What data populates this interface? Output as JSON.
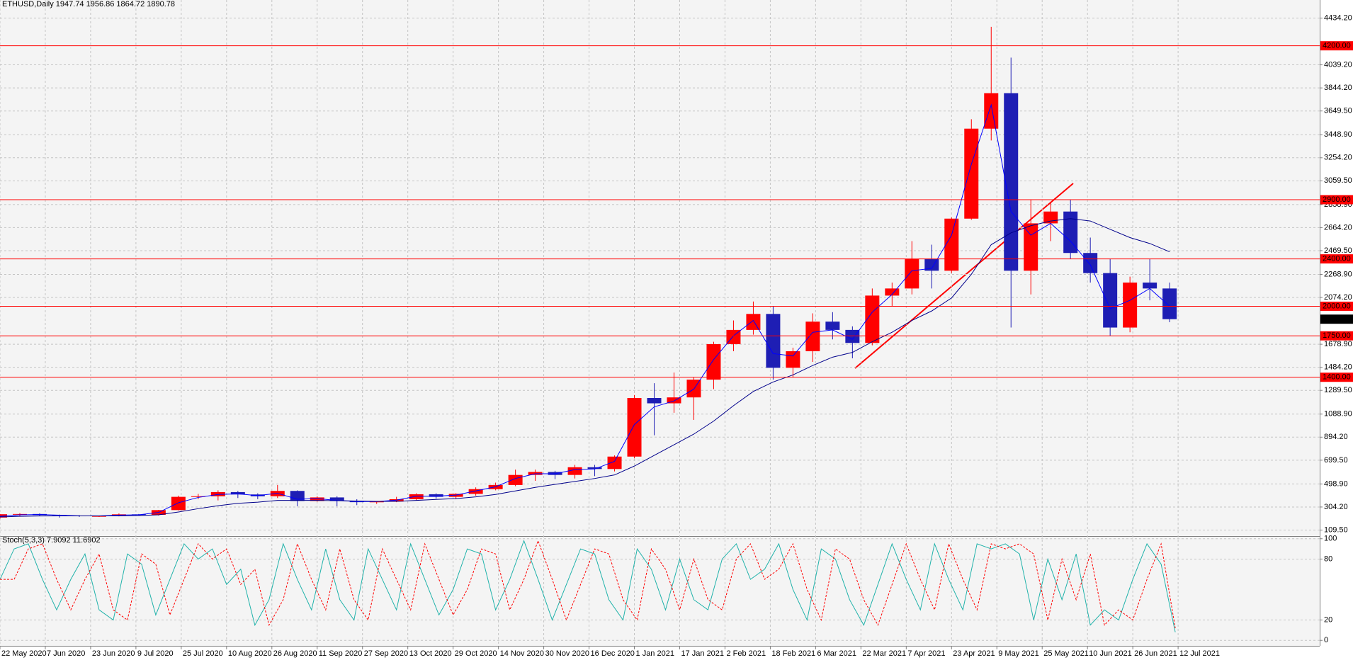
{
  "chart_data": [
    {
      "type": "candlestick",
      "title": "ETHUSD,Daily  1947.74 1956.86 1864.72 1890.78",
      "x": [
        "22 May 2020",
        "29 May 2020",
        "5 Jun 2020",
        "12 Jun 2020",
        "19 Jun 2020",
        "26 Jun 2020",
        "3 Jul 2020",
        "10 Jul 2020",
        "17 Jul 2020",
        "24 Jul 2020",
        "31 Jul 2020",
        "7 Aug 2020",
        "14 Aug 2020",
        "21 Aug 2020",
        "28 Aug 2020",
        "4 Sep 2020",
        "11 Sep 2020",
        "18 Sep 2020",
        "25 Sep 2020",
        "2 Oct 2020",
        "9 Oct 2020",
        "16 Oct 2020",
        "23 Oct 2020",
        "30 Oct 2020",
        "6 Nov 2020",
        "13 Nov 2020",
        "20 Nov 2020",
        "27 Nov 2020",
        "4 Dec 2020",
        "11 Dec 2020",
        "18 Dec 2020",
        "25 Dec 2020",
        "1 Jan 2021",
        "8 Jan 2021",
        "15 Jan 2021",
        "22 Jan 2021",
        "29 Jan 2021",
        "5 Feb 2021",
        "12 Feb 2021",
        "19 Feb 2021",
        "26 Feb 2021",
        "5 Mar 2021",
        "12 Mar 2021",
        "19 Mar 2021",
        "26 Mar 2021",
        "2 Apr 2021",
        "9 Apr 2021",
        "16 Apr 2021",
        "23 Apr 2021",
        "30 Apr 2021",
        "7 May 2021",
        "14 May 2021",
        "21 May 2021",
        "28 May 2021",
        "4 Jun 2021",
        "11 Jun 2021",
        "18 Jun 2021",
        "25 Jun 2021",
        "2 Jul 2021",
        "9 Jul 2021"
      ],
      "open": [
        215,
        243,
        245,
        236,
        232,
        228,
        228,
        242,
        238,
        278,
        390,
        395,
        430,
        410,
        395,
        440,
        355,
        385,
        355,
        345,
        350,
        370,
        412,
        390,
        415,
        455,
        490,
        575,
        600,
        575,
        640,
        625,
        730,
        1225,
        1180,
        1230,
        1380,
        1680,
        1800,
        1935,
        1480,
        1620,
        1870,
        1800,
        1690,
        2090,
        2150,
        2400,
        2300,
        2740,
        3500,
        3800,
        2300,
        2700,
        2800,
        2450,
        2280,
        1820,
        2200,
        2150
      ],
      "high": [
        245,
        252,
        250,
        240,
        236,
        232,
        250,
        245,
        280,
        400,
        415,
        445,
        440,
        420,
        490,
        445,
        395,
        395,
        370,
        355,
        390,
        420,
        420,
        420,
        470,
        510,
        620,
        620,
        610,
        660,
        660,
        740,
        1250,
        1350,
        1440,
        1400,
        1700,
        1880,
        2040,
        2000,
        1650,
        1940,
        1950,
        1830,
        2150,
        2200,
        2550,
        2520,
        2750,
        3580,
        4360,
        4100,
        2900,
        2880,
        2900,
        2580,
        2400,
        2250,
        2400,
        2200
      ],
      "low": [
        205,
        225,
        228,
        215,
        220,
        220,
        225,
        232,
        232,
        275,
        370,
        360,
        380,
        370,
        380,
        310,
        350,
        310,
        320,
        330,
        345,
        360,
        375,
        370,
        400,
        445,
        480,
        525,
        540,
        545,
        565,
        605,
        715,
        910,
        1100,
        1040,
        1300,
        1620,
        1760,
        1380,
        1400,
        1530,
        1720,
        1560,
        1670,
        2000,
        2100,
        2150,
        2280,
        2730,
        3400,
        1820,
        2100,
        2550,
        2400,
        2200,
        1750,
        1780,
        2050,
        1865
      ],
      "close": [
        243,
        245,
        236,
        232,
        228,
        228,
        242,
        238,
        278,
        390,
        395,
        430,
        410,
        395,
        440,
        355,
        385,
        355,
        345,
        350,
        370,
        412,
        390,
        415,
        455,
        490,
        575,
        600,
        575,
        640,
        625,
        730,
        1225,
        1180,
        1230,
        1380,
        1680,
        1800,
        1935,
        1480,
        1620,
        1870,
        1800,
        1690,
        2090,
        2150,
        2400,
        2300,
        2740,
        3500,
        3800,
        2300,
        2700,
        2800,
        2450,
        2280,
        1820,
        2200,
        2150,
        1890.78
      ],
      "up_color": "#ff0000",
      "down_color": "#1e1eb4",
      "indicators": [
        {
          "color": "#0000ff",
          "values": [
            225,
            238,
            240,
            235,
            230,
            229,
            236,
            238,
            258,
            340,
            385,
            410,
            415,
            400,
            420,
            370,
            375,
            360,
            350,
            350,
            362,
            395,
            395,
            405,
            440,
            475,
            545,
            585,
            585,
            620,
            625,
            690,
            1000,
            1150,
            1200,
            1300,
            1550,
            1750,
            1880,
            1600,
            1580,
            1780,
            1800,
            1720,
            1950,
            2100,
            2300,
            2320,
            2600,
            3200,
            3700,
            2800,
            2600,
            2700,
            2550,
            2350,
            1980,
            2050,
            2150,
            2000
          ]
        },
        {
          "color": "#00008b",
          "values": [
            220,
            225,
            228,
            229,
            229,
            229,
            230,
            232,
            238,
            262,
            290,
            315,
            335,
            345,
            360,
            360,
            360,
            358,
            355,
            352,
            352,
            360,
            368,
            375,
            390,
            410,
            440,
            470,
            495,
            520,
            545,
            575,
            650,
            740,
            830,
            920,
            1030,
            1160,
            1280,
            1360,
            1420,
            1500,
            1570,
            1610,
            1700,
            1780,
            1880,
            1960,
            2070,
            2270,
            2520,
            2620,
            2680,
            2720,
            2740,
            2720,
            2650,
            2580,
            2530,
            2460
          ]
        }
      ],
      "levels": [
        {
          "value": 4200,
          "label": "4200.00"
        },
        {
          "value": 2900,
          "label": "2900.00"
        },
        {
          "value": 2400,
          "label": "2400.00"
        },
        {
          "value": 2000,
          "label": "2000.00"
        },
        {
          "value": 1750,
          "label": "1750.00"
        },
        {
          "value": 1400,
          "label": "1400.00"
        }
      ],
      "level_color": "#ff0000",
      "last_price": 1890.78,
      "ylim": [
        58.6,
        4527
      ],
      "yticks": [
        {
          "value": 4434.2,
          "label": "4434.20"
        },
        {
          "value": 4039.2,
          "label": "4039.20"
        },
        {
          "value": 3844.2,
          "label": "3844.20"
        },
        {
          "value": 3649.5,
          "label": "3649.50"
        },
        {
          "value": 3448.9,
          "label": "3448.90"
        },
        {
          "value": 3254.2,
          "label": "3254.20"
        },
        {
          "value": 3059.5,
          "label": "3059.50"
        },
        {
          "value": 2858.9,
          "label": "2858.90"
        },
        {
          "value": 2664.2,
          "label": "2664.20"
        },
        {
          "value": 2469.5,
          "label": "2469.50"
        },
        {
          "value": 2268.9,
          "label": "2268.90"
        },
        {
          "value": 2074.2,
          "label": "2074.20"
        },
        {
          "value": 1678.9,
          "label": "1678.90"
        },
        {
          "value": 1484.2,
          "label": "1484.20"
        },
        {
          "value": 1289.5,
          "label": "1289.50"
        },
        {
          "value": 1088.9,
          "label": "1088.90"
        },
        {
          "value": 894.2,
          "label": "894.20"
        },
        {
          "value": 699.5,
          "label": "699.50"
        },
        {
          "value": 498.9,
          "label": "498.90"
        },
        {
          "value": 304.2,
          "label": "304.20"
        },
        {
          "value": 109.5,
          "label": "109.50"
        }
      ],
      "xlim": [
        "22 May 2020",
        "31 Aug 2021"
      ],
      "xticks": [
        "22 May 2020",
        "7 Jun 2020",
        "23 Jun 2020",
        "9 Jul 2020",
        "25 Jul 2020",
        "10 Aug 2020",
        "26 Aug 2020",
        "11 Sep 2020",
        "27 Sep 2020",
        "13 Oct 2020",
        "29 Oct 2020",
        "14 Nov 2020",
        "30 Nov 2020",
        "16 Dec 2020",
        "1 Jan 2021",
        "17 Jan 2021",
        "2 Feb 2021",
        "18 Feb 2021",
        "6 Mar 2021",
        "22 Mar 2021",
        "7 Apr 2021",
        "23 Apr 2021",
        "9 May 2021",
        "25 May 2021",
        "10 Jun 2021",
        "26 Jun 2021",
        "12 Jul 2021"
      ],
      "grid": true
    },
    {
      "type": "line",
      "title": "Stoch(5,3,3) 7.9092 11.6902",
      "x": [
        "22 May 2020",
        "27 May 2020",
        "1 Jun 2020",
        "6 Jun 2020",
        "11 Jun 2020",
        "16 Jun 2020",
        "21 Jun 2020",
        "26 Jun 2020",
        "1 Jul 2020",
        "6 Jul 2020",
        "11 Jul 2020",
        "16 Jul 2020",
        "21 Jul 2020",
        "26 Jul 2020",
        "31 Jul 2020",
        "5 Aug 2020",
        "10 Aug 2020",
        "15 Aug 2020",
        "20 Aug 2020",
        "25 Aug 2020",
        "30 Aug 2020",
        "4 Sep 2020",
        "9 Sep 2020",
        "14 Sep 2020",
        "19 Sep 2020",
        "24 Sep 2020",
        "29 Sep 2020",
        "4 Oct 2020",
        "9 Oct 2020",
        "14 Oct 2020",
        "19 Oct 2020",
        "24 Oct 2020",
        "29 Oct 2020",
        "3 Nov 2020",
        "8 Nov 2020",
        "13 Nov 2020",
        "18 Nov 2020",
        "23 Nov 2020",
        "28 Nov 2020",
        "3 Dec 2020",
        "8 Dec 2020",
        "13 Dec 2020",
        "18 Dec 2020",
        "23 Dec 2020",
        "28 Dec 2020",
        "2 Jan 2021",
        "7 Jan 2021",
        "12 Jan 2021",
        "17 Jan 2021",
        "22 Jan 2021",
        "27 Jan 2021",
        "1 Feb 2021",
        "6 Feb 2021",
        "11 Feb 2021",
        "16 Feb 2021",
        "21 Feb 2021",
        "26 Feb 2021",
        "3 Mar 2021",
        "8 Mar 2021",
        "13 Mar 2021",
        "18 Mar 2021",
        "23 Mar 2021",
        "28 Mar 2021",
        "2 Apr 2021",
        "7 Apr 2021",
        "12 Apr 2021",
        "17 Apr 2021",
        "22 Apr 2021",
        "27 Apr 2021",
        "2 May 2021",
        "7 May 2021",
        "12 May 2021",
        "17 May 2021",
        "22 May 2021",
        "27 May 2021",
        "1 Jun 2021",
        "6 Jun 2021",
        "11 Jun 2021",
        "16 Jun 2021",
        "21 Jun 2021",
        "26 Jun 2021",
        "1 Jul 2021",
        "6 Jul 2021",
        "11 Jul 2021"
      ],
      "series": [
        {
          "color": "#20b2aa",
          "values": [
            60,
            90,
            95,
            60,
            30,
            60,
            85,
            30,
            20,
            85,
            75,
            25,
            60,
            95,
            80,
            90,
            55,
            70,
            15,
            40,
            95,
            60,
            30,
            90,
            40,
            20,
            90,
            60,
            30,
            95,
            60,
            25,
            50,
            90,
            85,
            30,
            60,
            98,
            60,
            20,
            55,
            90,
            85,
            40,
            20,
            90,
            70,
            30,
            80,
            40,
            30,
            80,
            95,
            60,
            70,
            95,
            50,
            20,
            90,
            80,
            40,
            15,
            55,
            95,
            60,
            30,
            95,
            60,
            30,
            95,
            90,
            95,
            85,
            20,
            80,
            40,
            85,
            15,
            30,
            20,
            60,
            95,
            75,
            8
          ]
        },
        {
          "color": "#ff0000",
          "dashed": true,
          "values": [
            60,
            60,
            90,
            95,
            60,
            30,
            60,
            85,
            30,
            20,
            85,
            75,
            25,
            60,
            95,
            80,
            90,
            55,
            70,
            15,
            40,
            95,
            60,
            30,
            90,
            40,
            20,
            90,
            60,
            30,
            95,
            60,
            25,
            50,
            90,
            85,
            30,
            60,
            98,
            60,
            20,
            55,
            90,
            85,
            40,
            20,
            90,
            70,
            30,
            80,
            40,
            30,
            80,
            95,
            60,
            70,
            95,
            50,
            20,
            90,
            80,
            40,
            15,
            55,
            95,
            60,
            30,
            95,
            60,
            30,
            95,
            90,
            95,
            85,
            20,
            80,
            40,
            85,
            15,
            30,
            20,
            60,
            95,
            12
          ]
        }
      ],
      "xlim": [
        "22 May 2020",
        "31 Aug 2021"
      ],
      "ylim": [
        -4,
        104
      ],
      "yticks": [
        100,
        80,
        20,
        0
      ],
      "grid": true
    }
  ]
}
